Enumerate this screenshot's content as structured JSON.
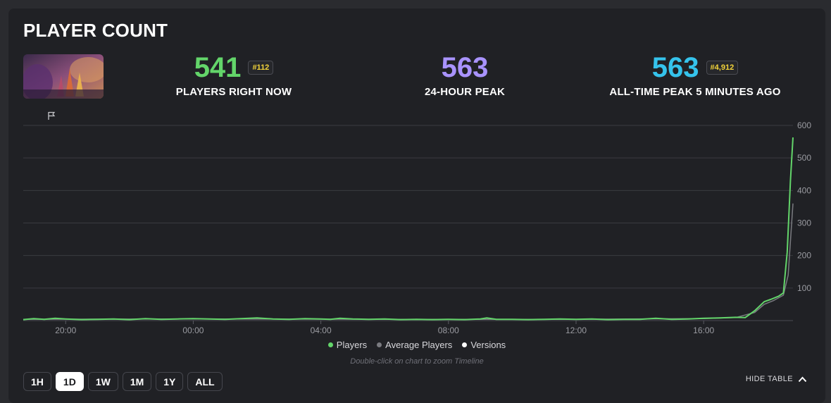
{
  "header": {
    "title": "PLAYER COUNT"
  },
  "stats": [
    {
      "value": "541",
      "rank": "#112",
      "label": "PLAYERS RIGHT NOW",
      "color": "#63d56a"
    },
    {
      "value": "563",
      "rank": "",
      "label": "24-HOUR PEAK",
      "color": "#a993ff"
    },
    {
      "value": "563",
      "rank": "#4,912",
      "label": "ALL-TIME PEAK 5 MINUTES AGO",
      "color": "#35c3ec"
    }
  ],
  "legend": [
    {
      "label": "Players",
      "color": "#63d56a"
    },
    {
      "label": "Average Players",
      "color": "#7a7b80"
    },
    {
      "label": "Versions",
      "color": "#ffffff"
    }
  ],
  "hint": "Double-click on chart to zoom Timeline",
  "ranges": [
    "1H",
    "1D",
    "1W",
    "1M",
    "1Y",
    "ALL"
  ],
  "active_range": "1D",
  "hide_table": "HIDE TABLE",
  "chart_data": {
    "type": "line",
    "x_tick_labels": [
      "20:00",
      "00:00",
      "04:00",
      "08:00",
      "12:00",
      "16:00"
    ],
    "x_tick_hours": [
      20,
      24,
      28,
      32,
      36,
      40
    ],
    "xlim_hours": [
      18.67,
      42.8
    ],
    "ylim": [
      0,
      600
    ],
    "y_ticks": [
      100,
      200,
      300,
      400,
      500,
      600
    ],
    "grid": true,
    "legend_position": "bottom-center",
    "series": [
      {
        "name": "Players",
        "color": "#63d56a",
        "points": [
          [
            18.67,
            3
          ],
          [
            19.0,
            6
          ],
          [
            19.33,
            4
          ],
          [
            19.67,
            7
          ],
          [
            20.0,
            5
          ],
          [
            20.5,
            3
          ],
          [
            21.0,
            4
          ],
          [
            21.5,
            5
          ],
          [
            22.0,
            3
          ],
          [
            22.5,
            6
          ],
          [
            23.0,
            4
          ],
          [
            23.5,
            5
          ],
          [
            24.0,
            6
          ],
          [
            24.5,
            5
          ],
          [
            25.0,
            4
          ],
          [
            25.5,
            6
          ],
          [
            26.0,
            8
          ],
          [
            26.5,
            5
          ],
          [
            27.0,
            4
          ],
          [
            27.5,
            6
          ],
          [
            28.0,
            5
          ],
          [
            28.3,
            4
          ],
          [
            28.6,
            7
          ],
          [
            29.0,
            5
          ],
          [
            29.5,
            4
          ],
          [
            30.0,
            5
          ],
          [
            30.5,
            3
          ],
          [
            31.0,
            4
          ],
          [
            31.5,
            3
          ],
          [
            32.0,
            4
          ],
          [
            32.5,
            3
          ],
          [
            33.0,
            5
          ],
          [
            33.2,
            8
          ],
          [
            33.5,
            4
          ],
          [
            34.0,
            4
          ],
          [
            34.5,
            3
          ],
          [
            35.0,
            4
          ],
          [
            35.5,
            5
          ],
          [
            36.0,
            4
          ],
          [
            36.5,
            5
          ],
          [
            37.0,
            3
          ],
          [
            37.5,
            4
          ],
          [
            38.0,
            4
          ],
          [
            38.5,
            7
          ],
          [
            39.0,
            4
          ],
          [
            39.5,
            5
          ],
          [
            40.0,
            7
          ],
          [
            40.5,
            8
          ],
          [
            41.0,
            10
          ],
          [
            41.3,
            9
          ],
          [
            41.6,
            30
          ],
          [
            41.9,
            58
          ],
          [
            42.1,
            65
          ],
          [
            42.35,
            75
          ],
          [
            42.5,
            85
          ],
          [
            42.62,
            210
          ],
          [
            42.72,
            430
          ],
          [
            42.8,
            563
          ]
        ]
      },
      {
        "name": "Average Players",
        "color": "#7a7b80",
        "points": [
          [
            18.67,
            4
          ],
          [
            24.0,
            5
          ],
          [
            30.0,
            4
          ],
          [
            36.0,
            4
          ],
          [
            40.0,
            6
          ],
          [
            41.0,
            9
          ],
          [
            41.6,
            25
          ],
          [
            41.9,
            50
          ],
          [
            42.2,
            62
          ],
          [
            42.5,
            78
          ],
          [
            42.65,
            140
          ],
          [
            42.8,
            360
          ]
        ]
      }
    ]
  }
}
